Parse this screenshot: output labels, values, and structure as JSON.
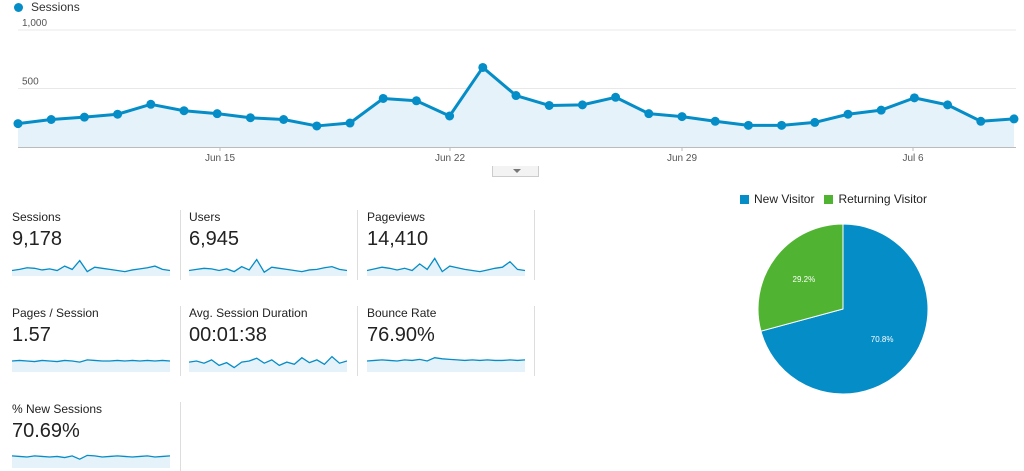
{
  "colors": {
    "sessions": "#058dc7",
    "area": "#e6f2f9",
    "new_visitor": "#058dc7",
    "returning_visitor": "#50b432"
  },
  "main_chart": {
    "legend": "Sessions",
    "y_ticks": [
      "1,000",
      "500"
    ],
    "x_ticks": [
      "Jun 15",
      "Jun 22",
      "Jun 29",
      "Jul 6"
    ]
  },
  "metrics": [
    {
      "label": "Sessions",
      "value": "9,178"
    },
    {
      "label": "Users",
      "value": "6,945"
    },
    {
      "label": "Pageviews",
      "value": "14,410"
    },
    {
      "label": "Pages / Session",
      "value": "1.57"
    },
    {
      "label": "Avg. Session Duration",
      "value": "00:01:38"
    },
    {
      "label": "Bounce Rate",
      "value": "76.90%"
    },
    {
      "label": "% New Sessions",
      "value": "70.69%"
    }
  ],
  "pie": {
    "legend": [
      "New Visitor",
      "Returning Visitor"
    ],
    "labels": [
      "70.8%",
      "29.2%"
    ]
  },
  "chart_data": [
    {
      "type": "line",
      "series": [
        {
          "name": "Sessions",
          "values": [
            200,
            235,
            255,
            280,
            365,
            310,
            285,
            250,
            235,
            180,
            205,
            415,
            395,
            265,
            680,
            440,
            355,
            360,
            425,
            285,
            260,
            220,
            185,
            185,
            210,
            280,
            315,
            420,
            360,
            220,
            240
          ]
        }
      ],
      "x_ticks": [
        "Jun 15",
        "Jun 22",
        "Jun 29",
        "Jul 6"
      ],
      "y_ticks": [
        "1,000",
        "500"
      ],
      "ylim": [
        0,
        1000
      ],
      "grid": true
    },
    {
      "type": "pie",
      "categories": [
        "New Visitor",
        "Returning Visitor"
      ],
      "values": [
        70.8,
        29.2
      ],
      "legend": "top"
    }
  ],
  "sparklines": [
    [
      40,
      42,
      45,
      44,
      41,
      43,
      40,
      48,
      42,
      58,
      38,
      46,
      44,
      42,
      40,
      38,
      41,
      43,
      45,
      48,
      42,
      40
    ],
    [
      40,
      42,
      44,
      43,
      40,
      43,
      38,
      47,
      41,
      60,
      37,
      46,
      44,
      42,
      40,
      38,
      41,
      42,
      45,
      47,
      42,
      40
    ],
    [
      40,
      43,
      46,
      44,
      41,
      44,
      40,
      52,
      42,
      62,
      38,
      48,
      45,
      42,
      40,
      38,
      41,
      44,
      46,
      56,
      42,
      40
    ],
    [
      50,
      51,
      50,
      49,
      51,
      50,
      49,
      51,
      50,
      48,
      52,
      51,
      50,
      50,
      51,
      50,
      51,
      50,
      51,
      50,
      51,
      50
    ],
    [
      48,
      50,
      46,
      52,
      42,
      47,
      38,
      48,
      50,
      55,
      46,
      52,
      42,
      48,
      44,
      56,
      47,
      52,
      44,
      58,
      46,
      50
    ],
    [
      50,
      51,
      52,
      51,
      50,
      52,
      51,
      53,
      50,
      56,
      54,
      53,
      52,
      51,
      52,
      51,
      52,
      51,
      51,
      52,
      51,
      52
    ],
    [
      52,
      51,
      50,
      52,
      51,
      50,
      51,
      49,
      52,
      46,
      53,
      52,
      50,
      51,
      52,
      51,
      50,
      51,
      52,
      50,
      51,
      52
    ]
  ]
}
